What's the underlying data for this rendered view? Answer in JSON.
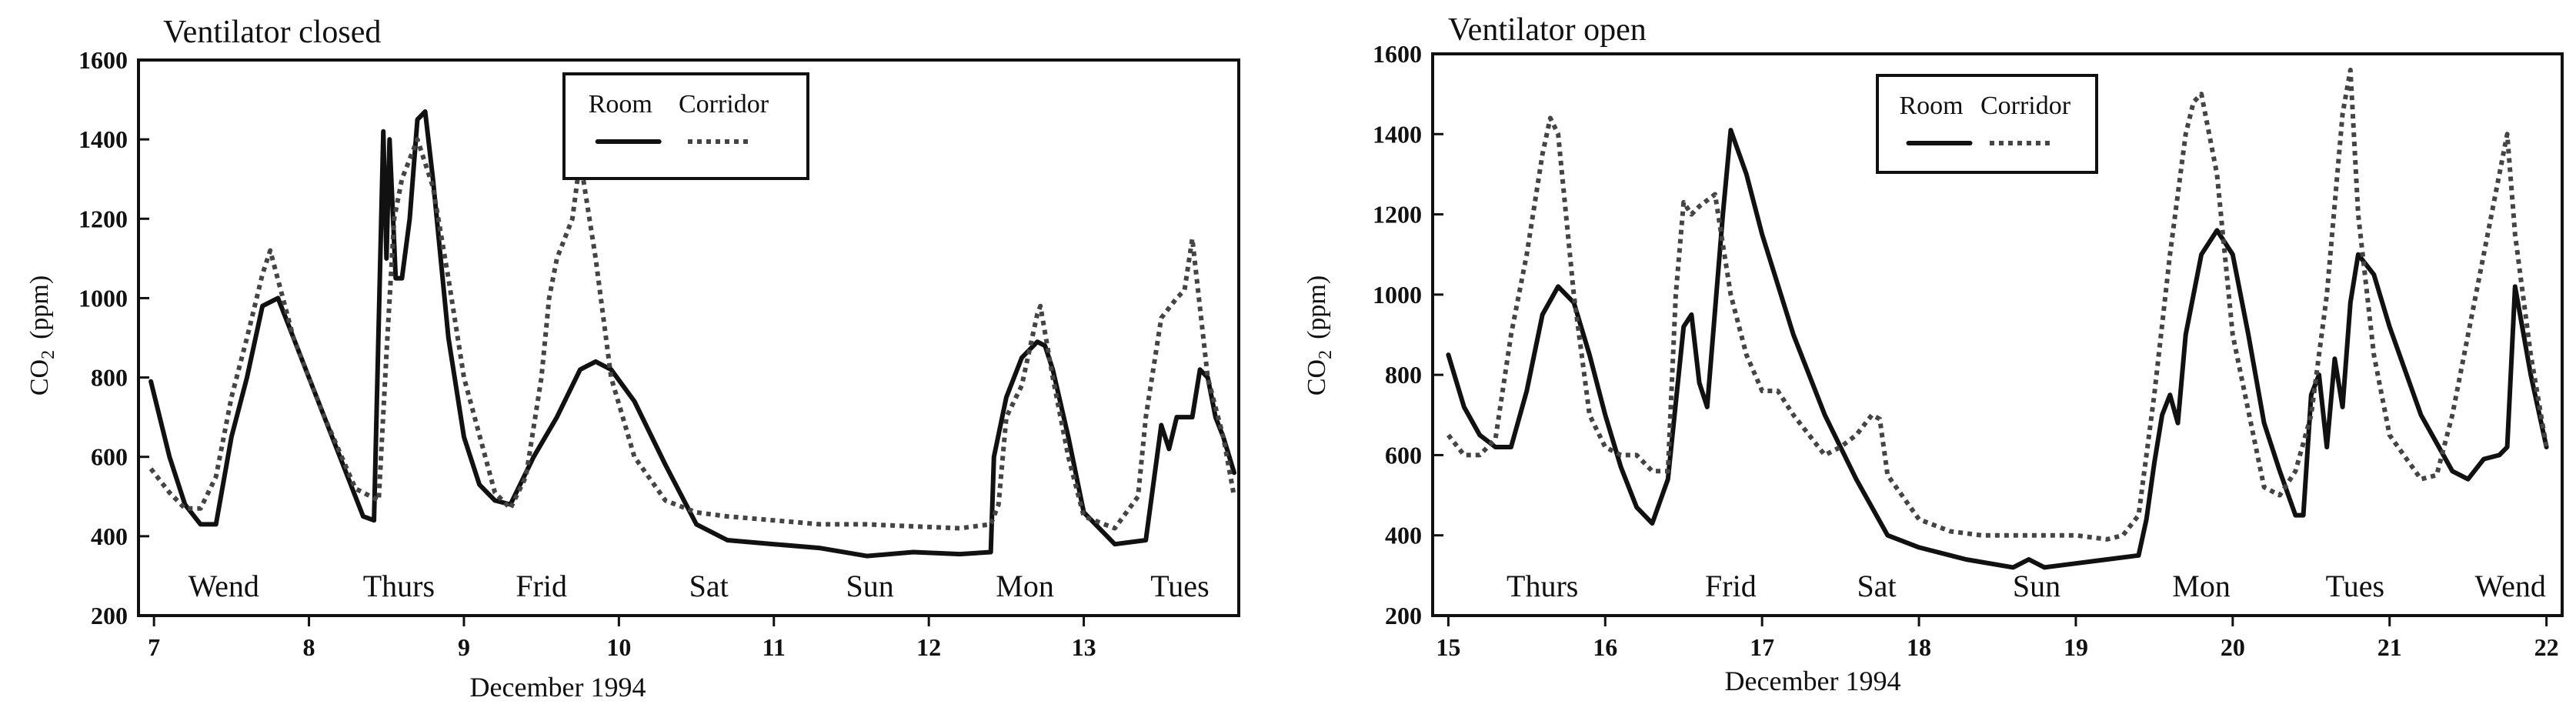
{
  "chart_data": [
    {
      "type": "line",
      "title": "Ventilator closed",
      "xlabel": "December 1994",
      "ylabel": "CO₂ (ppm)",
      "ylabel_main": "CO",
      "ylabel_sub": "2",
      "ylabel_unit": "(ppm)",
      "xlim": [
        6.9,
        14.0
      ],
      "ylim": [
        200,
        1600
      ],
      "xticks": [
        7,
        8,
        9,
        10,
        11,
        12,
        13
      ],
      "xtick_labels": [
        "7",
        "8",
        "9",
        "10",
        "11",
        "12",
        "13"
      ],
      "yticks": [
        200,
        400,
        600,
        800,
        1000,
        1200,
        1400,
        1600
      ],
      "ytick_labels": [
        "200",
        "400",
        "600",
        "800",
        "1000",
        "1200",
        "1400",
        "1600"
      ],
      "day_labels": [
        {
          "text": "Wend",
          "x": 7.45
        },
        {
          "text": "Thurs",
          "x": 8.58
        },
        {
          "text": "Frid",
          "x": 9.5
        },
        {
          "text": "Sat",
          "x": 10.58
        },
        {
          "text": "Sun",
          "x": 11.62
        },
        {
          "text": "Mon",
          "x": 12.62
        },
        {
          "text": "Tues",
          "x": 13.62
        }
      ],
      "legend": {
        "position": "top-center",
        "entries": [
          "Room",
          "Corridor"
        ]
      },
      "series": [
        {
          "name": "Room",
          "style": "solid",
          "x": [
            6.98,
            7.1,
            7.2,
            7.3,
            7.4,
            7.5,
            7.6,
            7.7,
            7.8,
            8.0,
            8.2,
            8.35,
            8.42,
            8.48,
            8.5,
            8.52,
            8.56,
            8.6,
            8.65,
            8.7,
            8.75,
            8.8,
            8.9,
            9.0,
            9.1,
            9.2,
            9.3,
            9.45,
            9.6,
            9.75,
            9.85,
            9.95,
            10.1,
            10.3,
            10.5,
            10.7,
            11.0,
            11.3,
            11.6,
            11.9,
            12.2,
            12.4,
            12.42,
            12.5,
            12.6,
            12.7,
            12.75,
            12.8,
            12.9,
            13.0,
            13.2,
            13.4,
            13.5,
            13.55,
            13.6,
            13.7,
            13.75,
            13.8,
            13.85,
            13.9,
            13.97
          ],
          "y": [
            790,
            600,
            480,
            430,
            430,
            650,
            800,
            980,
            1000,
            800,
            600,
            450,
            440,
            1420,
            1100,
            1400,
            1050,
            1050,
            1200,
            1450,
            1470,
            1300,
            900,
            650,
            530,
            490,
            480,
            600,
            700,
            820,
            840,
            820,
            740,
            580,
            430,
            390,
            380,
            370,
            350,
            360,
            355,
            360,
            600,
            750,
            850,
            890,
            880,
            820,
            650,
            460,
            380,
            390,
            680,
            620,
            700,
            700,
            820,
            800,
            700,
            650,
            560
          ]
        },
        {
          "name": "Corridor",
          "style": "dotted",
          "x": [
            6.98,
            7.1,
            7.2,
            7.3,
            7.4,
            7.5,
            7.6,
            7.7,
            7.75,
            7.9,
            8.1,
            8.3,
            8.45,
            8.5,
            8.55,
            8.6,
            8.7,
            8.8,
            8.9,
            9.0,
            9.2,
            9.3,
            9.4,
            9.5,
            9.55,
            9.6,
            9.7,
            9.75,
            9.85,
            9.95,
            10.1,
            10.3,
            10.5,
            10.7,
            11.0,
            11.3,
            11.6,
            11.9,
            12.2,
            12.4,
            12.45,
            12.5,
            12.6,
            12.7,
            12.72,
            12.8,
            12.9,
            13.0,
            13.2,
            13.35,
            13.4,
            13.5,
            13.6,
            13.65,
            13.7,
            13.8,
            13.9,
            13.97
          ],
          "y": [
            570,
            510,
            470,
            470,
            550,
            750,
            900,
            1060,
            1120,
            900,
            700,
            520,
            490,
            860,
            1200,
            1300,
            1400,
            1280,
            1050,
            800,
            510,
            470,
            550,
            800,
            1000,
            1100,
            1200,
            1350,
            1100,
            800,
            600,
            490,
            460,
            450,
            440,
            430,
            430,
            425,
            420,
            430,
            480,
            700,
            780,
            960,
            980,
            800,
            600,
            450,
            420,
            500,
            700,
            950,
            1000,
            1020,
            1150,
            800,
            650,
            500
          ]
        }
      ]
    },
    {
      "type": "line",
      "title": "Ventilator open",
      "xlabel": "December 1994",
      "ylabel": "CO₂ (ppm)",
      "ylabel_main": "CO",
      "ylabel_sub": "2",
      "ylabel_unit": "(ppm)",
      "xlim": [
        14.9,
        22.1
      ],
      "ylim": [
        200,
        1600
      ],
      "xticks": [
        15,
        16,
        17,
        18,
        19,
        20,
        21,
        22
      ],
      "xtick_labels": [
        "15",
        "16",
        "17",
        "18",
        "19",
        "20",
        "21",
        "22"
      ],
      "yticks": [
        200,
        400,
        600,
        800,
        1000,
        1200,
        1400,
        1600
      ],
      "ytick_labels": [
        "200",
        "400",
        "600",
        "800",
        "1000",
        "1200",
        "1400",
        "1600"
      ],
      "day_labels": [
        {
          "text": "Thurs",
          "x": 15.6
        },
        {
          "text": "Frid",
          "x": 16.8
        },
        {
          "text": "Sat",
          "x": 17.73
        },
        {
          "text": "Sun",
          "x": 18.75
        },
        {
          "text": "Mon",
          "x": 19.8
        },
        {
          "text": "Tues",
          "x": 20.78
        },
        {
          "text": "Wend",
          "x": 21.77
        }
      ],
      "legend": {
        "position": "top-center",
        "entries": [
          "Room",
          "Corridor"
        ]
      },
      "series": [
        {
          "name": "Room",
          "style": "solid",
          "x": [
            15.0,
            15.1,
            15.2,
            15.3,
            15.4,
            15.5,
            15.6,
            15.7,
            15.8,
            15.9,
            16.0,
            16.1,
            16.2,
            16.3,
            16.4,
            16.5,
            16.55,
            16.6,
            16.65,
            16.7,
            16.75,
            16.8,
            16.9,
            17.0,
            17.2,
            17.4,
            17.6,
            17.8,
            18.0,
            18.3,
            18.6,
            18.7,
            18.8,
            19.0,
            19.2,
            19.4,
            19.45,
            19.5,
            19.55,
            19.6,
            19.65,
            19.7,
            19.8,
            19.9,
            20.0,
            20.1,
            20.2,
            20.3,
            20.4,
            20.45,
            20.5,
            20.55,
            20.6,
            20.65,
            20.7,
            20.75,
            20.8,
            20.9,
            21.0,
            21.2,
            21.4,
            21.5,
            21.6,
            21.7,
            21.75,
            21.8,
            21.9,
            22.0
          ],
          "y": [
            850,
            720,
            650,
            620,
            620,
            760,
            950,
            1020,
            980,
            850,
            700,
            570,
            470,
            430,
            540,
            920,
            950,
            780,
            720,
            960,
            1200,
            1410,
            1300,
            1150,
            900,
            700,
            540,
            400,
            370,
            340,
            320,
            340,
            320,
            330,
            340,
            350,
            440,
            580,
            700,
            750,
            680,
            900,
            1100,
            1160,
            1100,
            900,
            680,
            560,
            450,
            450,
            750,
            800,
            620,
            840,
            720,
            980,
            1100,
            1050,
            920,
            700,
            560,
            540,
            590,
            600,
            620,
            1020,
            800,
            620
          ]
        },
        {
          "name": "Corridor",
          "style": "dotted",
          "x": [
            15.0,
            15.1,
            15.2,
            15.3,
            15.4,
            15.5,
            15.6,
            15.65,
            15.7,
            15.8,
            15.9,
            16.0,
            16.1,
            16.2,
            16.3,
            16.4,
            16.45,
            16.5,
            16.55,
            16.6,
            16.7,
            16.8,
            16.9,
            17.0,
            17.1,
            17.2,
            17.4,
            17.5,
            17.6,
            17.7,
            17.75,
            17.8,
            18.0,
            18.2,
            18.4,
            18.6,
            18.8,
            19.0,
            19.2,
            19.3,
            19.4,
            19.5,
            19.6,
            19.7,
            19.75,
            19.8,
            19.9,
            20.0,
            20.2,
            20.3,
            20.4,
            20.5,
            20.6,
            20.7,
            20.75,
            20.8,
            20.9,
            21.0,
            21.2,
            21.3,
            21.4,
            21.5,
            21.6,
            21.7,
            21.75,
            21.8,
            21.9,
            22.0
          ],
          "y": [
            650,
            600,
            600,
            640,
            900,
            1100,
            1350,
            1440,
            1400,
            1000,
            700,
            620,
            600,
            600,
            560,
            560,
            1000,
            1230,
            1200,
            1220,
            1250,
            1000,
            850,
            760,
            760,
            700,
            600,
            620,
            650,
            700,
            690,
            550,
            440,
            410,
            400,
            400,
            400,
            400,
            390,
            400,
            450,
            750,
            1100,
            1400,
            1480,
            1500,
            1300,
            900,
            520,
            500,
            560,
            700,
            1000,
            1450,
            1560,
            1200,
            850,
            650,
            540,
            550,
            700,
            900,
            1100,
            1300,
            1400,
            1150,
            850,
            620
          ]
        }
      ]
    }
  ]
}
